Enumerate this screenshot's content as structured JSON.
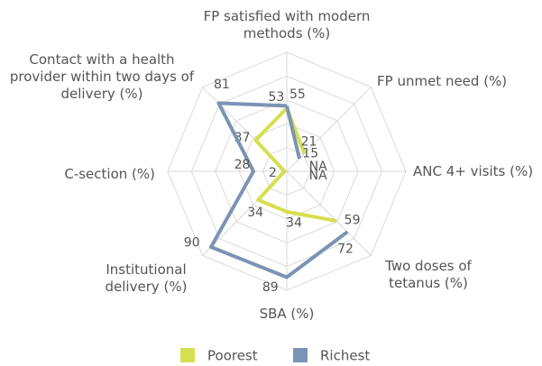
{
  "chart_data": {
    "type": "radar",
    "categories": [
      "FP satisfied with modern methods (%)",
      "FP unmet need (%)",
      "ANC 4+ visits (%)",
      "Two doses of tetanus (%)",
      "SBA (%)",
      "Institutional delivery (%)",
      "C-section (%)",
      "Contact with a health provider within two days of delivery (%)"
    ],
    "series": [
      {
        "name": "Poorest",
        "color": "#d6df4f",
        "values": [
          53,
          21,
          null,
          59,
          34,
          34,
          2,
          37
        ],
        "value_labels": [
          "53",
          "21",
          "NA",
          "59",
          "34",
          "34",
          "2",
          "37"
        ]
      },
      {
        "name": "Richest",
        "color": "#7b93b4",
        "values": [
          55,
          15,
          null,
          72,
          89,
          90,
          28,
          81
        ],
        "value_labels": [
          "55",
          "15",
          "NA",
          "72",
          "89",
          "90",
          "28",
          "81"
        ]
      }
    ],
    "ylim": [
      0,
      100
    ],
    "yticks": [
      0,
      20,
      40,
      60,
      80,
      100
    ],
    "grid": true,
    "legend": "bottom"
  }
}
